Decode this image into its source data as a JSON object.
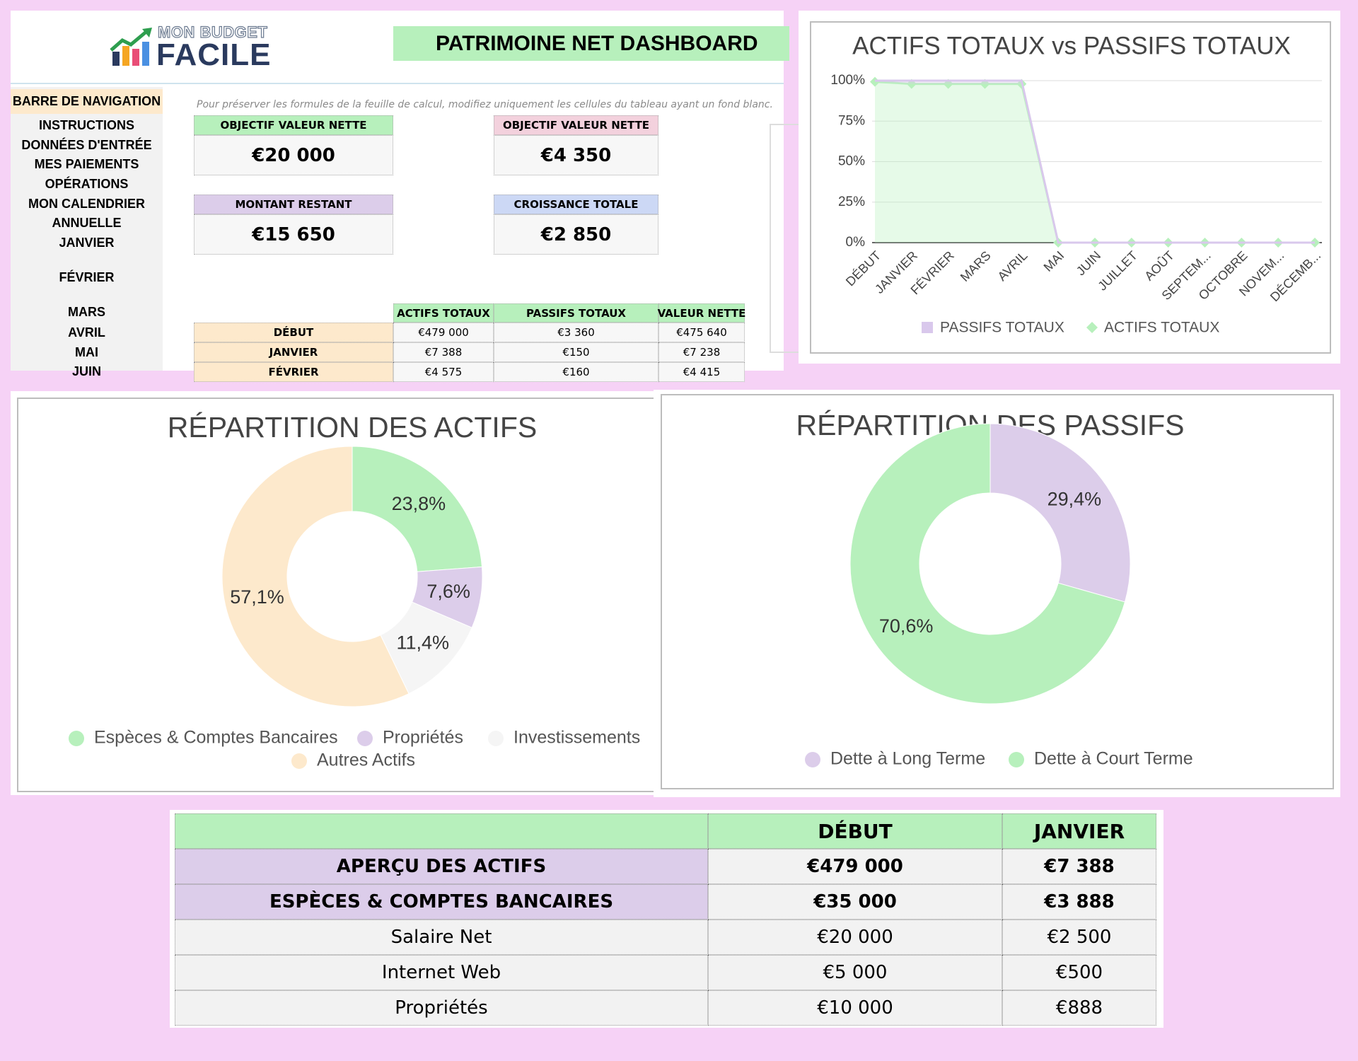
{
  "header": {
    "logo_top": "MON BUDGET",
    "logo_bottom": "FACILE",
    "title": "PATRIMOINE NET DASHBOARD"
  },
  "navigation": {
    "title": "BARRE DE NAVIGATION",
    "items": [
      "INSTRUCTIONS",
      "DONNÉES D'ENTRÉE",
      "MES PAIEMENTS",
      "OPÉRATIONS",
      "MON CALENDRIER",
      "ANNUELLE",
      "JANVIER",
      "FÉVRIER",
      "MARS",
      "AVRIL",
      "MAI",
      "JUIN"
    ]
  },
  "note": "Pour préserver les formules de la feuille de calcul, modifiez uniquement les cellules du tableau ayant un fond blanc.",
  "kpis": [
    {
      "label": "OBJECTIF VALEUR NETTE",
      "value": "€20 000",
      "color": "#b7f0bc"
    },
    {
      "label": "OBJECTIF VALEUR NETTE",
      "value": "€4 350",
      "color": "#f3d1dd"
    },
    {
      "label": "MONTANT RESTANT",
      "value": "€15 650",
      "color": "#dccdea"
    },
    {
      "label": "CROISSANCE TOTALE",
      "value": "€2 850",
      "color": "#ccd8f5"
    }
  ],
  "summary_table": {
    "columns": [
      "ACTIFS TOTAUX",
      "PASSIFS TOTAUX",
      "VALEUR NETTE"
    ],
    "rows": [
      [
        "DÉBUT",
        "€479 000",
        "€3 360",
        "€475 640"
      ],
      [
        "JANVIER",
        "€7 388",
        "€150",
        "€7 238"
      ],
      [
        "FÉVRIER",
        "€4 575",
        "€160",
        "€4 415"
      ]
    ]
  },
  "line_chart": {
    "type": "area",
    "title": "ACTIFS TOTAUX vs PASSIFS TOTAUX",
    "categories": [
      "DÉBUT",
      "JANVIER",
      "FÉVRIER",
      "MARS",
      "AVRIL",
      "MAI",
      "JUIN",
      "JUILLET",
      "AOÛT",
      "SEPTEM...",
      "OCTOBRE",
      "NOVEM...",
      "DÉCEMB..."
    ],
    "series": [
      {
        "name": "PASSIFS TOTAUX",
        "color": "#d9c8ec",
        "values": [
          0.7,
          2,
          2,
          2,
          2,
          0,
          0,
          0,
          0,
          0,
          0,
          0,
          0
        ]
      },
      {
        "name": "ACTIFS TOTAUX",
        "color": "#b7f0bc",
        "values": [
          99.3,
          98,
          98,
          98,
          98,
          0,
          0,
          0,
          0,
          0,
          0,
          0,
          0
        ]
      }
    ],
    "stacked": true,
    "ylim": [
      0,
      100
    ],
    "yticks": [
      {
        "value": 0,
        "label": "0%"
      },
      {
        "value": 25,
        "label": "25%"
      },
      {
        "value": 50,
        "label": "50%"
      },
      {
        "value": 75,
        "label": "75%"
      },
      {
        "value": 100,
        "label": "100%"
      }
    ],
    "grid": true,
    "legend": "bottom"
  },
  "assets_chart": {
    "type": "donut",
    "title": "RÉPARTITION DES ACTIFS",
    "categories": [
      "Espèces & Comptes Bancaires",
      "Propriétés",
      "Investissements",
      "Autres Actifs"
    ],
    "values": [
      23.8,
      7.6,
      11.4,
      57.1
    ],
    "value_labels": [
      "23,8%",
      "7,6%",
      "11,4%",
      "57,1%"
    ],
    "colors": [
      "#b7f0bc",
      "#dccdea",
      "#f5f5f5",
      "#fde9cc"
    ],
    "legend": "bottom"
  },
  "liabilities_chart": {
    "type": "donut",
    "title": "RÉPARTITION DES PASSIFS",
    "categories": [
      "Dette à Long Terme",
      "Dette à Court Terme"
    ],
    "values": [
      29.4,
      70.6
    ],
    "value_labels": [
      "29,4%",
      "70,6%"
    ],
    "colors": [
      "#dccdea",
      "#b7f0bc"
    ],
    "legend": "bottom"
  },
  "bottom_table": {
    "columns": [
      "DÉBUT",
      "JANVIER"
    ],
    "rows": [
      [
        "APERÇU DES ACTIFS",
        "€479 000",
        "€7 388"
      ],
      [
        "ESPÈCES & COMPTES BANCAIRES",
        "€35 000",
        "€3 888"
      ],
      [
        "Salaire Net",
        "€20 000",
        "€2 500"
      ],
      [
        "Internet Web",
        "€5 000",
        "€500"
      ],
      [
        "Propriétés",
        "€10 000",
        "€888"
      ]
    ]
  }
}
